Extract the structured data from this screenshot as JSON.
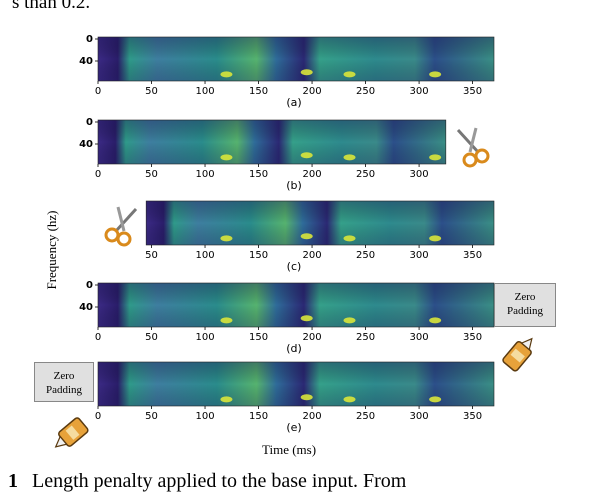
{
  "page": {
    "top_text": "s than 0.2.",
    "caption_bold": "1",
    "caption_text": "Length penalty applied to the base input. From"
  },
  "figure": {
    "ylabel": "Frequency (hz)",
    "xlabel": "Time (ms)",
    "panels": [
      {
        "label": "(a)",
        "x_start": 0,
        "x_end": 370,
        "yticks": [
          "0",
          "40"
        ]
      },
      {
        "label": "(b)",
        "x_start": 0,
        "x_end": 325,
        "yticks": [
          "0",
          "40"
        ]
      },
      {
        "label": "(c)",
        "x_start": 45,
        "x_end": 370,
        "yticks": []
      },
      {
        "label": "(d)",
        "x_start": 0,
        "x_end": 370,
        "yticks": [
          "0",
          "40"
        ]
      },
      {
        "label": "(e)",
        "x_start": 0,
        "x_end": 370,
        "yticks": []
      }
    ],
    "xticks": [
      "0",
      "50",
      "100",
      "150",
      "200",
      "250",
      "300",
      "350"
    ],
    "zero_padding_label_d": "Zero\nPadding",
    "zero_padding_label_e": "Zero\nPadding",
    "colors": {
      "low": "#2c1f6b",
      "mid": "#2a8c8c",
      "high": "#d9e53a"
    }
  }
}
